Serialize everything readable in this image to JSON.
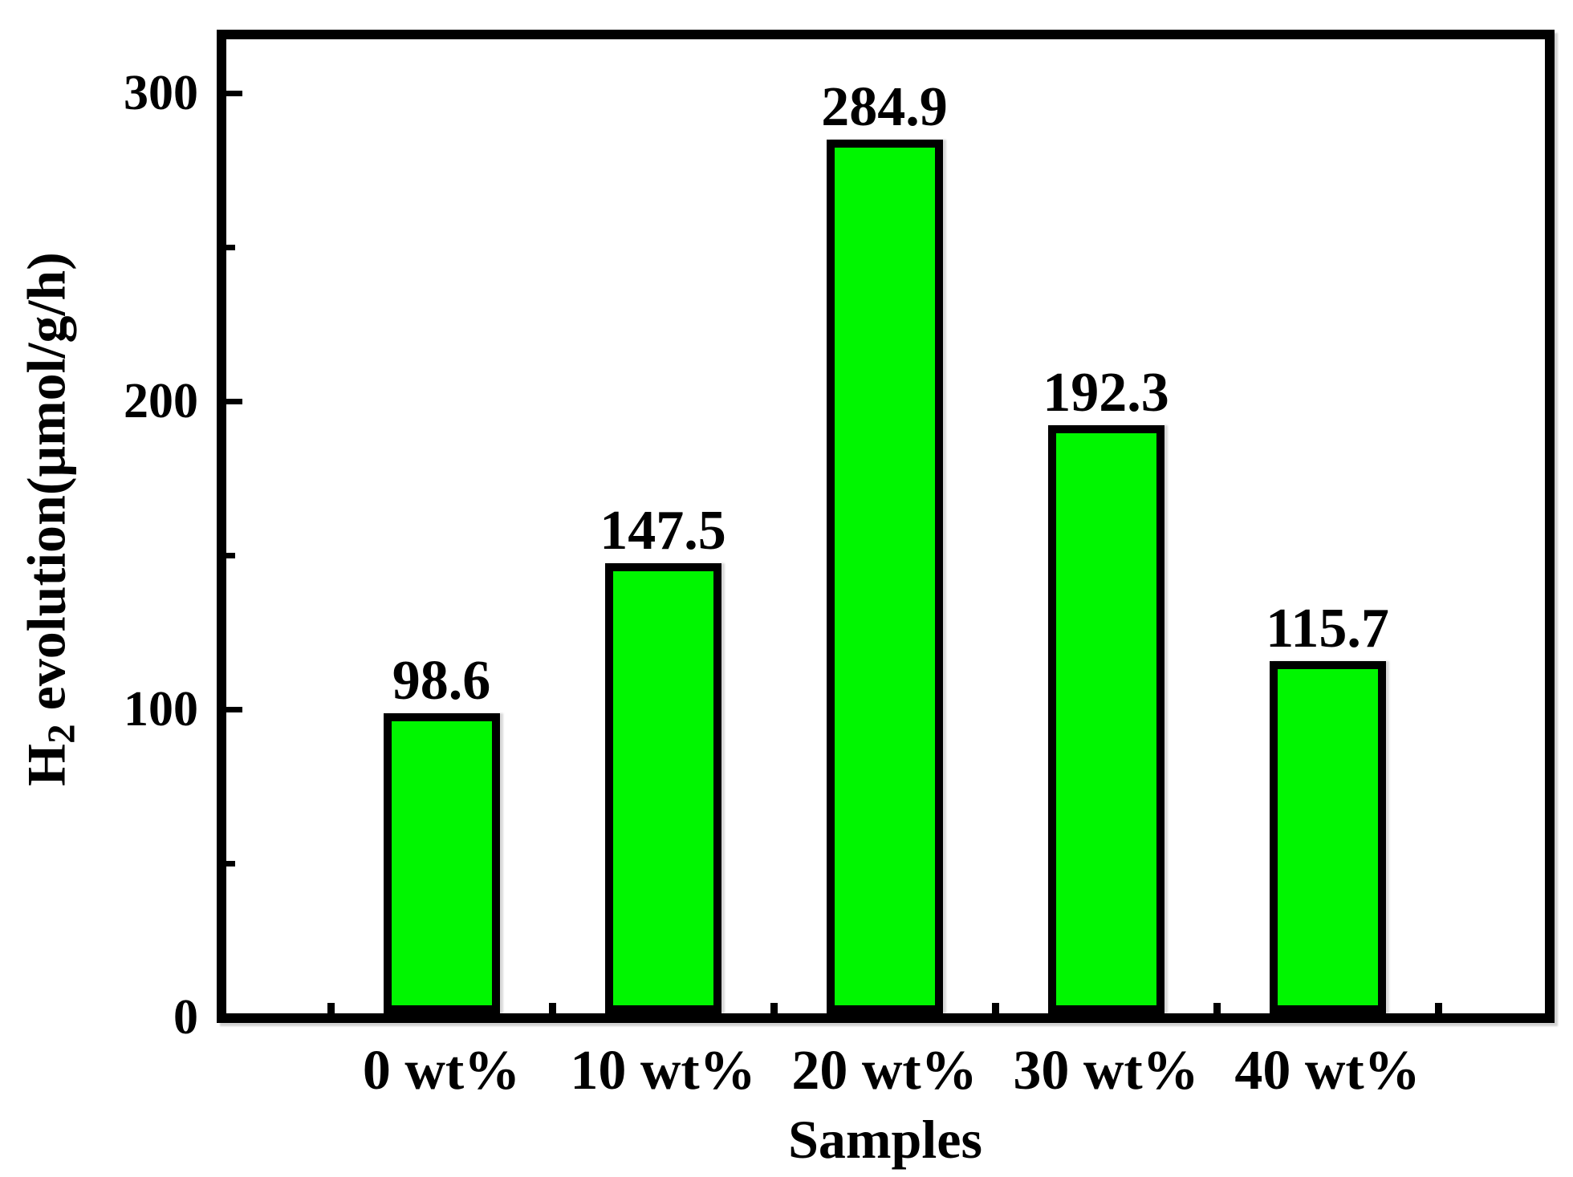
{
  "chart_data": {
    "type": "bar",
    "title": "",
    "categories": [
      "0 wt%",
      "10 wt%",
      "20 wt%",
      "30 wt%",
      "40 wt%"
    ],
    "values": [
      98.6,
      147.5,
      284.9,
      192.3,
      115.7
    ],
    "value_labels": [
      "98.6",
      "147.5",
      "284.9",
      "192.3",
      "115.7"
    ],
    "xlabel": "Samples",
    "ylabel": "H2 evolution(μmol/g/h)",
    "ylabel_parts": {
      "prefix": "H",
      "subscript": "2",
      "suffix": " evolution(μmol/g/h)"
    },
    "ylim": [
      0,
      318
    ],
    "yticks_major": [
      0,
      100,
      200,
      300
    ],
    "yticks_minor": [
      50,
      150,
      250
    ],
    "legend": "none",
    "grid": false,
    "colors": {
      "bar_fill": "#00f600",
      "bar_border": "#000000",
      "axis": "#000000",
      "background": "#ffffff",
      "text": "#000000"
    }
  }
}
